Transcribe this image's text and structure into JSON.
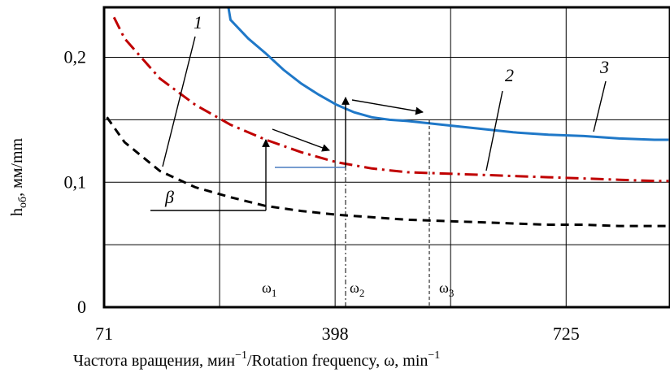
{
  "chart_data": {
    "type": "line",
    "xlabel": {
      "main": "Частота вращения, мин",
      "sup1": "−1",
      "mid": "/Rotation frequency, ω, min",
      "sup2": "−1"
    },
    "ylabel": {
      "main": "h",
      "sub": "об",
      "rest": ", мм/mm"
    },
    "x_ticks": [
      {
        "value": 71,
        "label": "71"
      },
      {
        "value": 398,
        "label": "398"
      },
      {
        "value": 725,
        "label": "725"
      }
    ],
    "y_ticks": [
      {
        "value": 0,
        "label": "0"
      },
      {
        "value": 0.1,
        "label": "0,1"
      },
      {
        "value": 0.2,
        "label": "0,2"
      }
    ],
    "xlim": [
      71,
      872
    ],
    "ylim": [
      0,
      0.24
    ],
    "grid": true,
    "series": [
      {
        "id": "1",
        "label": "1",
        "color": "#000000",
        "style": "dashed",
        "x": [
          75,
          100,
          150,
          200,
          250,
          300,
          350,
          400,
          450,
          500,
          550,
          600,
          650,
          700,
          750,
          800,
          850,
          870
        ],
        "y": [
          0.152,
          0.132,
          0.109,
          0.096,
          0.088,
          0.081,
          0.077,
          0.074,
          0.072,
          0.07,
          0.069,
          0.068,
          0.067,
          0.066,
          0.066,
          0.065,
          0.065,
          0.065
        ]
      },
      {
        "id": "2",
        "label": "2",
        "color": "#c00000",
        "style": "dashdot",
        "x": [
          85,
          100,
          150,
          200,
          250,
          300,
          350,
          400,
          450,
          500,
          550,
          600,
          650,
          700,
          750,
          800,
          850,
          870
        ],
        "y": [
          0.232,
          0.215,
          0.183,
          0.162,
          0.146,
          0.134,
          0.124,
          0.116,
          0.111,
          0.108,
          0.107,
          0.106,
          0.105,
          0.104,
          0.103,
          0.102,
          0.101,
          0.101
        ]
      },
      {
        "id": "3",
        "label": "3",
        "color": "#1f78c8",
        "style": "solid",
        "x": [
          247,
          250,
          275,
          300,
          325,
          350,
          375,
          400,
          425,
          450,
          475,
          500,
          550,
          600,
          650,
          700,
          750,
          800,
          850,
          870
        ],
        "y": [
          0.24,
          0.23,
          0.215,
          0.203,
          0.19,
          0.179,
          0.17,
          0.162,
          0.156,
          0.152,
          0.15,
          0.149,
          0.146,
          0.143,
          0.14,
          0.138,
          0.137,
          0.135,
          0.134,
          0.134
        ]
      }
    ],
    "omega_markers": [
      {
        "base": "ω",
        "sub": "1",
        "x": 271
      },
      {
        "base": "ω",
        "sub": "2",
        "x": 371
      },
      {
        "base": "ω",
        "sub": "3",
        "x": 470
      }
    ],
    "annotation_beta": "β"
  }
}
